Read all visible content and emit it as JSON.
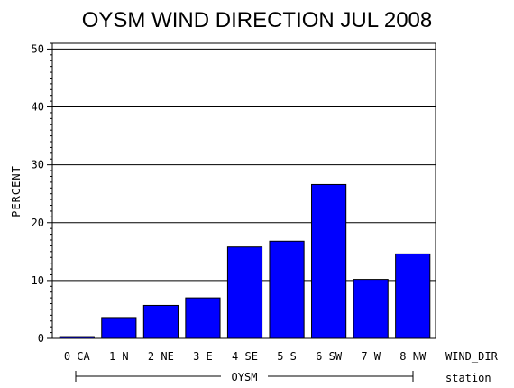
{
  "chart_data": {
    "type": "bar",
    "title": "OYSM WIND DIRECTION JUL 2008",
    "ylabel": "PERCENT",
    "xlabel": "WIND_DIR",
    "group_axis_label": "station",
    "group_label": "OYSM",
    "categories": [
      "0 CA",
      "1 N",
      "2 NE",
      "3 E",
      "4 SE",
      "5 S",
      "6 SW",
      "7 W",
      "8 NW"
    ],
    "values": [
      0.3,
      3.6,
      5.7,
      7.0,
      15.8,
      16.8,
      26.6,
      10.2,
      14.6
    ],
    "ylim": [
      0,
      51
    ],
    "yticks": [
      0,
      10,
      20,
      30,
      40,
      50
    ],
    "grid": true,
    "bar_color": "#0000ff"
  }
}
